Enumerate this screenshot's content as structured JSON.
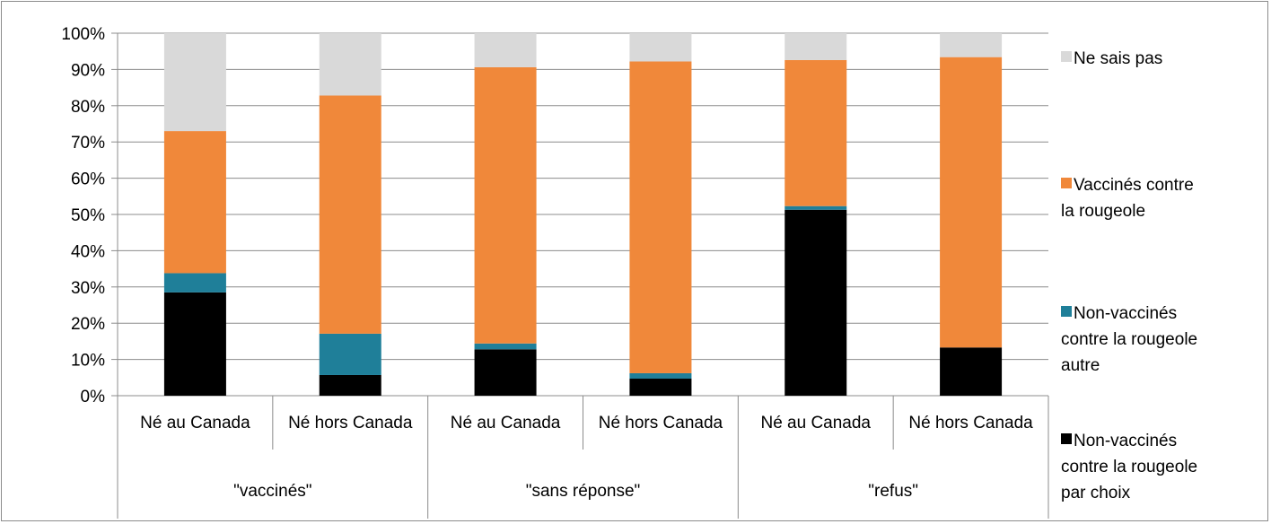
{
  "chart_data": {
    "type": "bar",
    "stacked": true,
    "y_format": "percent",
    "ylim": [
      0,
      100
    ],
    "yticks": [
      0,
      10,
      20,
      30,
      40,
      50,
      60,
      70,
      80,
      90,
      100
    ],
    "grid": true,
    "legend_position": "right",
    "groups": [
      {
        "label": "\"vaccinés\"",
        "categories": [
          "Né au Canada",
          "Né hors Canada"
        ]
      },
      {
        "label": "\"sans réponse\"",
        "categories": [
          "Né au Canada",
          "Né hors Canada"
        ]
      },
      {
        "label": "\"refus\"",
        "categories": [
          "Né au Canada",
          "Né hors Canada"
        ]
      }
    ],
    "series": [
      {
        "name": "Non-vaccinés contre la rougeole par choix",
        "color": "#000000",
        "values": [
          28.5,
          5.7,
          12.8,
          4.7,
          51.3,
          13.3
        ]
      },
      {
        "name": "Non-vaccinés contre la rougeole autre",
        "color": "#1f7f99",
        "values": [
          5.3,
          11.4,
          1.6,
          1.5,
          1.0,
          0.0
        ]
      },
      {
        "name": "Vaccinés contre la rougeole",
        "color": "#f0883a",
        "values": [
          39.2,
          65.7,
          76.2,
          86.0,
          40.3,
          80.1
        ]
      },
      {
        "name": "Ne sais pas",
        "color": "#d9d9d9",
        "values": [
          27.0,
          17.2,
          9.4,
          7.8,
          7.4,
          6.6
        ]
      }
    ],
    "legend_order": [
      "Ne sais pas",
      "Vaccinés contre la rougeole",
      "Non-vaccinés contre la rougeole autre",
      "Non-vaccinés contre la rougeole par choix"
    ]
  }
}
